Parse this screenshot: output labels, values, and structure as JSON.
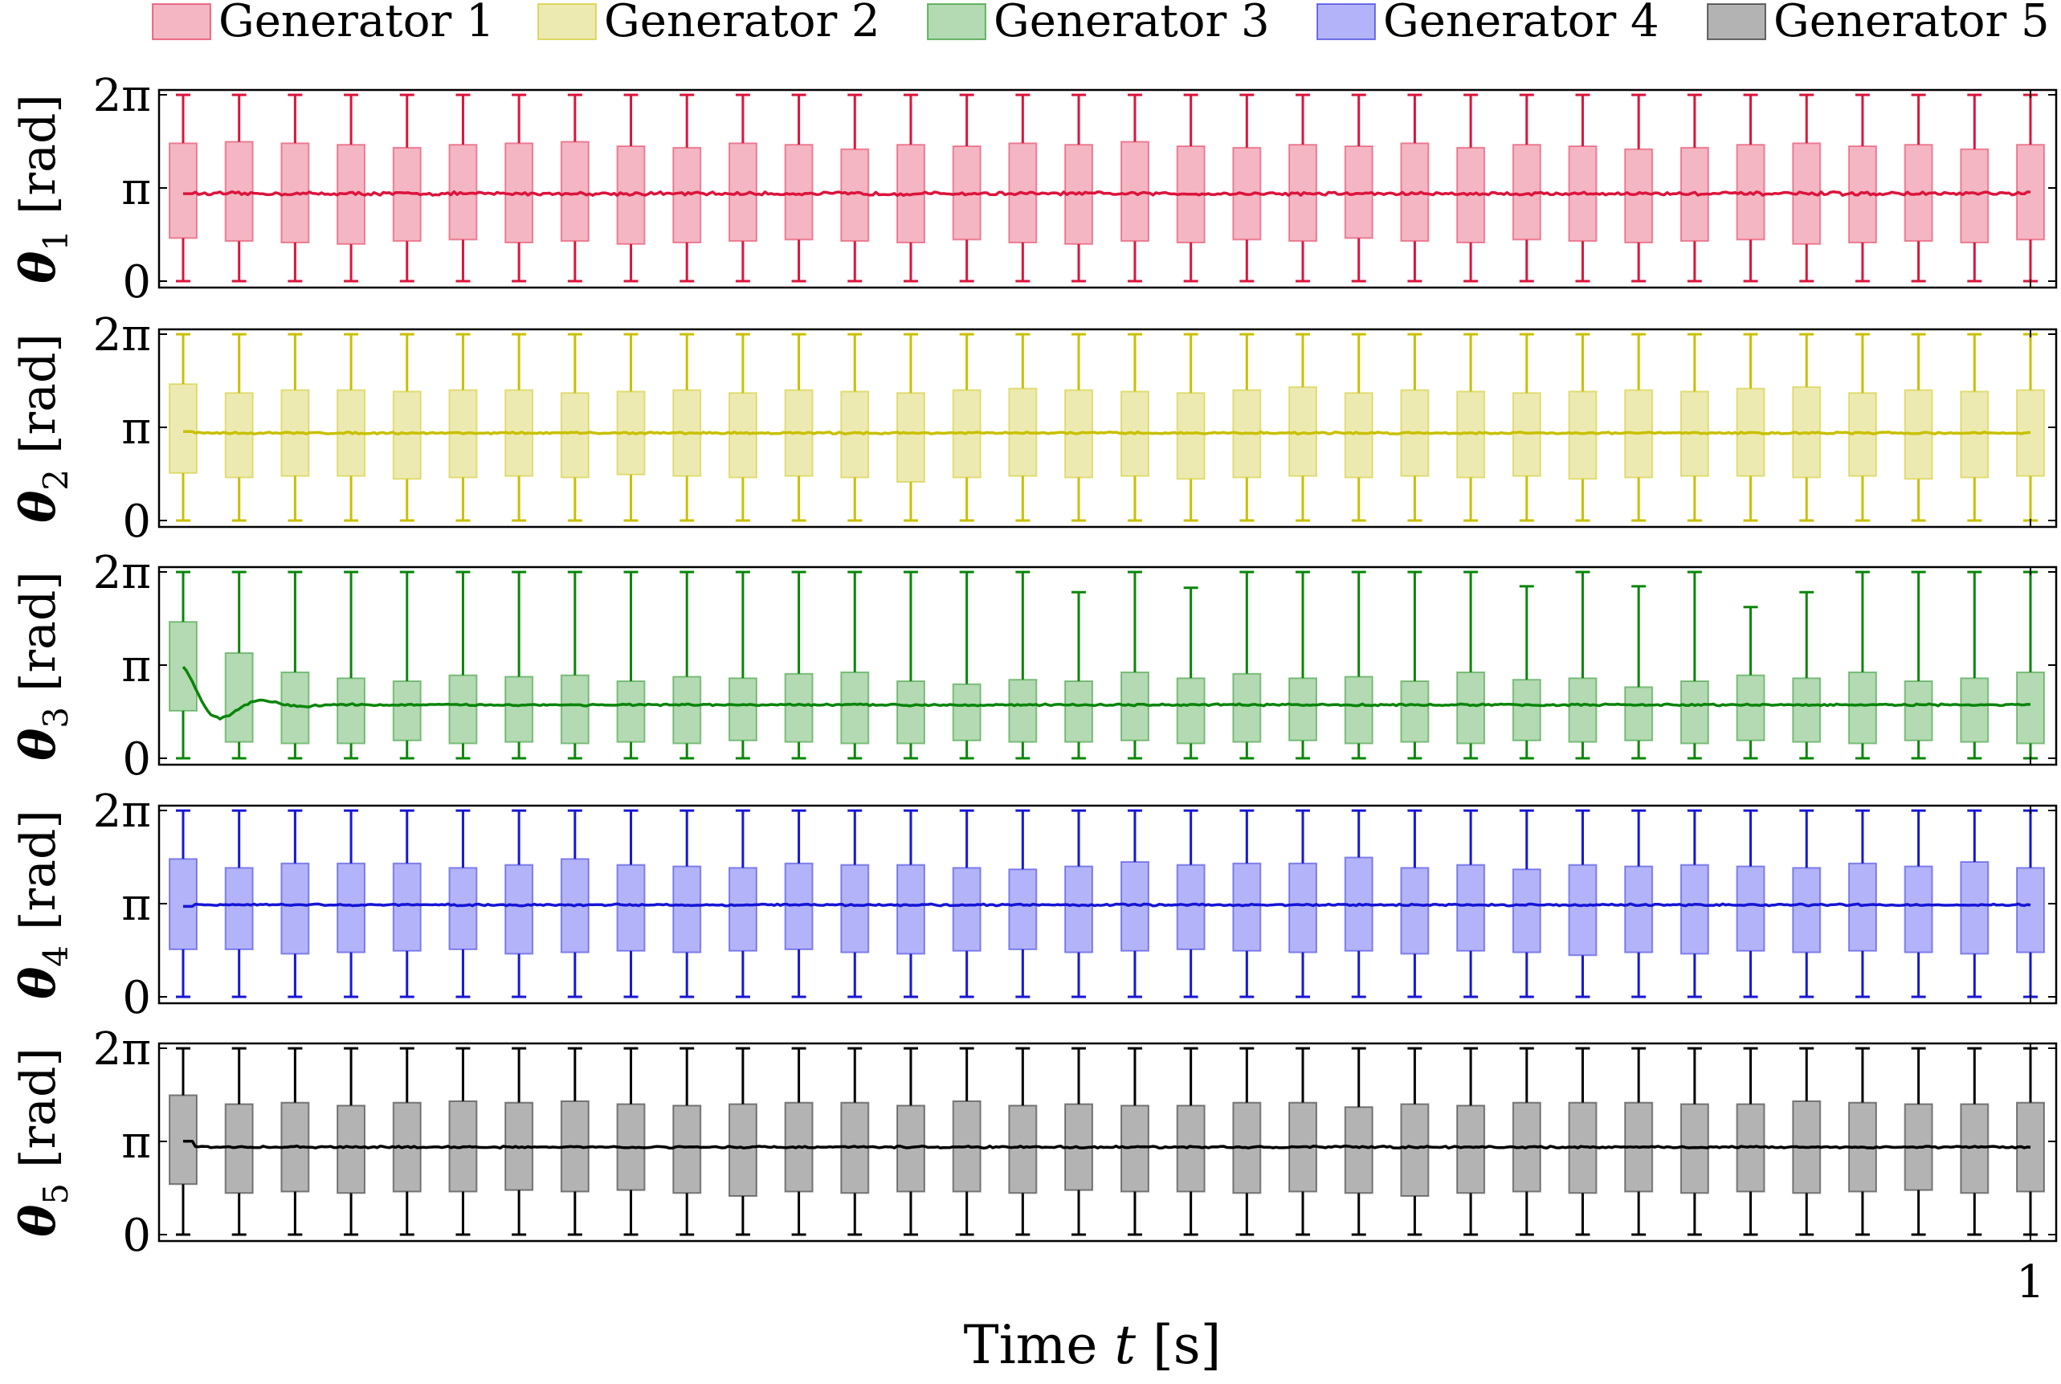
{
  "chart_data": {
    "type": "box_with_line",
    "time_unit": "s",
    "x_range": [
      0,
      1
    ],
    "x_ticks": [
      {
        "value": 1,
        "label": "1"
      }
    ],
    "xlabel": "Time t [s]",
    "xlabel_parts": {
      "pre": "Time ",
      "var": "t",
      "post": " [s]"
    },
    "ylim": [
      0,
      6.2832
    ],
    "y_ticks": [
      {
        "value": 0,
        "label": "0"
      },
      {
        "value": 3.1416,
        "label": "π"
      },
      {
        "value": 6.2832,
        "label": "2π"
      }
    ],
    "legend_position": "top",
    "grid": false,
    "box_times": [
      0,
      0.0303,
      0.0606,
      0.0909,
      0.1212,
      0.1515,
      0.1818,
      0.2121,
      0.2424,
      0.2727,
      0.303,
      0.3333,
      0.3636,
      0.3939,
      0.4242,
      0.4545,
      0.4848,
      0.5152,
      0.5455,
      0.5758,
      0.6061,
      0.6364,
      0.6667,
      0.697,
      0.7273,
      0.7576,
      0.7879,
      0.8182,
      0.8485,
      0.8788,
      0.9091,
      0.9394,
      0.9697,
      1.0
    ],
    "series": [
      {
        "name": "Generator 1",
        "ylabel": "θ1 [rad]",
        "ylabel_parts": {
          "sym": "θ",
          "sub": "1",
          "unit": " [rad]"
        },
        "color": "#dc143c",
        "fill": "#f4b6c2",
        "line_mean": 2.95,
        "line_start": 2.95,
        "line_noise": 0.09,
        "whisker_low": [
          0,
          0,
          0,
          0,
          0,
          0,
          0,
          0,
          0,
          0,
          0,
          0,
          0,
          0,
          0,
          0,
          0,
          0,
          0,
          0,
          0,
          0,
          0,
          0,
          0,
          0,
          0,
          0,
          0,
          0,
          0,
          0,
          0,
          0
        ],
        "whisker_high": [
          6.28,
          6.28,
          6.28,
          6.28,
          6.28,
          6.28,
          6.28,
          6.28,
          6.28,
          6.28,
          6.28,
          6.28,
          6.28,
          6.28,
          6.28,
          6.28,
          6.28,
          6.28,
          6.28,
          6.28,
          6.28,
          6.28,
          6.28,
          6.28,
          6.28,
          6.28,
          6.28,
          6.28,
          6.28,
          6.28,
          6.28,
          6.28,
          6.28,
          6.28
        ],
        "q1": [
          1.45,
          1.35,
          1.3,
          1.25,
          1.35,
          1.4,
          1.3,
          1.35,
          1.25,
          1.3,
          1.35,
          1.4,
          1.35,
          1.3,
          1.4,
          1.3,
          1.25,
          1.35,
          1.3,
          1.4,
          1.35,
          1.45,
          1.35,
          1.3,
          1.4,
          1.35,
          1.3,
          1.35,
          1.4,
          1.25,
          1.3,
          1.35,
          1.3,
          1.4
        ],
        "q3": [
          4.65,
          4.7,
          4.65,
          4.6,
          4.5,
          4.6,
          4.65,
          4.7,
          4.55,
          4.5,
          4.65,
          4.6,
          4.45,
          4.6,
          4.55,
          4.65,
          4.6,
          4.7,
          4.55,
          4.5,
          4.6,
          4.55,
          4.65,
          4.5,
          4.6,
          4.55,
          4.45,
          4.5,
          4.6,
          4.65,
          4.55,
          4.6,
          4.45,
          4.6
        ]
      },
      {
        "name": "Generator 2",
        "ylabel": "θ2 [rad]",
        "ylabel_parts": {
          "sym": "θ",
          "sub": "2",
          "unit": " [rad]"
        },
        "color": "#c8c000",
        "fill": "#edeab1",
        "line_mean": 2.95,
        "line_start": 3.0,
        "line_noise": 0.05,
        "whisker_low": [
          0,
          0,
          0,
          0,
          0,
          0,
          0,
          0,
          0,
          0,
          0,
          0,
          0,
          0,
          0,
          0,
          0,
          0,
          0,
          0,
          0,
          0,
          0,
          0,
          0,
          0,
          0,
          0,
          0,
          0,
          0,
          0,
          0,
          0
        ],
        "whisker_high": [
          6.28,
          6.28,
          6.28,
          6.28,
          6.28,
          6.28,
          6.28,
          6.28,
          6.28,
          6.28,
          6.28,
          6.28,
          6.28,
          6.28,
          6.28,
          6.28,
          6.28,
          6.28,
          6.28,
          6.28,
          6.28,
          6.28,
          6.28,
          6.28,
          6.28,
          6.28,
          6.28,
          6.28,
          6.28,
          6.28,
          6.28,
          6.28,
          6.28,
          6.28
        ],
        "q1": [
          1.6,
          1.45,
          1.5,
          1.5,
          1.4,
          1.45,
          1.5,
          1.45,
          1.55,
          1.5,
          1.45,
          1.5,
          1.45,
          1.3,
          1.45,
          1.5,
          1.45,
          1.5,
          1.4,
          1.45,
          1.5,
          1.45,
          1.5,
          1.45,
          1.5,
          1.4,
          1.45,
          1.5,
          1.5,
          1.45,
          1.5,
          1.4,
          1.45,
          1.5
        ],
        "q3": [
          4.6,
          4.3,
          4.4,
          4.4,
          4.35,
          4.4,
          4.4,
          4.3,
          4.35,
          4.4,
          4.3,
          4.4,
          4.35,
          4.3,
          4.4,
          4.45,
          4.4,
          4.35,
          4.3,
          4.4,
          4.5,
          4.3,
          4.4,
          4.35,
          4.3,
          4.35,
          4.4,
          4.35,
          4.45,
          4.5,
          4.3,
          4.4,
          4.35,
          4.4
        ]
      },
      {
        "name": "Generator 3",
        "ylabel": "θ3 [rad]",
        "ylabel_parts": {
          "sym": "θ",
          "sub": "3",
          "unit": " [rad]"
        },
        "color": "#0a850a",
        "fill": "#b3dab3",
        "line_mean": 1.8,
        "line_start": 3.1,
        "line_noise": 0.05,
        "whisker_low": [
          0,
          0,
          0,
          0,
          0,
          0,
          0,
          0,
          0,
          0,
          0,
          0,
          0,
          0,
          0,
          0,
          0,
          0,
          0,
          0,
          0,
          0,
          0,
          0,
          0,
          0,
          0,
          0,
          0,
          0,
          0,
          0,
          0,
          0
        ],
        "whisker_high": [
          6.28,
          6.28,
          6.28,
          6.28,
          6.28,
          6.28,
          6.28,
          6.28,
          6.28,
          6.28,
          6.28,
          6.28,
          6.28,
          6.28,
          6.28,
          6.28,
          5.6,
          6.28,
          5.75,
          6.28,
          6.28,
          6.28,
          6.28,
          6.28,
          5.8,
          6.28,
          5.8,
          6.28,
          5.1,
          5.6,
          6.28,
          6.28,
          6.28,
          6.28
        ],
        "q1": [
          1.6,
          0.55,
          0.5,
          0.5,
          0.6,
          0.5,
          0.55,
          0.5,
          0.55,
          0.5,
          0.6,
          0.55,
          0.5,
          0.5,
          0.6,
          0.55,
          0.55,
          0.6,
          0.5,
          0.55,
          0.6,
          0.5,
          0.55,
          0.5,
          0.6,
          0.55,
          0.6,
          0.5,
          0.6,
          0.55,
          0.5,
          0.6,
          0.55,
          0.5
        ],
        "q3": [
          4.6,
          3.55,
          2.9,
          2.7,
          2.6,
          2.8,
          2.75,
          2.8,
          2.6,
          2.75,
          2.7,
          2.85,
          2.9,
          2.6,
          2.5,
          2.65,
          2.6,
          2.9,
          2.7,
          2.85,
          2.7,
          2.75,
          2.6,
          2.9,
          2.65,
          2.7,
          2.4,
          2.6,
          2.8,
          2.7,
          2.9,
          2.6,
          2.7,
          2.9
        ]
      },
      {
        "name": "Generator 4",
        "ylabel": "θ4 [rad]",
        "ylabel_parts": {
          "sym": "θ",
          "sub": "4",
          "unit": " [rad]"
        },
        "color": "#1616d6",
        "fill": "#b3b3f9",
        "line_mean": 3.1,
        "line_start": 3.05,
        "line_noise": 0.05,
        "whisker_low": [
          0,
          0,
          0,
          0,
          0,
          0,
          0,
          0,
          0,
          0,
          0,
          0,
          0,
          0,
          0,
          0,
          0,
          0,
          0,
          0,
          0,
          0,
          0,
          0,
          0,
          0,
          0,
          0,
          0,
          0,
          0,
          0,
          0,
          0
        ],
        "whisker_high": [
          6.28,
          6.28,
          6.28,
          6.28,
          6.28,
          6.28,
          6.28,
          6.28,
          6.28,
          6.28,
          6.28,
          6.28,
          6.28,
          6.28,
          6.28,
          6.28,
          6.28,
          6.28,
          6.28,
          6.28,
          6.28,
          6.28,
          6.28,
          6.28,
          6.28,
          6.28,
          6.28,
          6.28,
          6.28,
          6.28,
          6.28,
          6.28,
          6.28,
          6.28
        ],
        "q1": [
          1.6,
          1.6,
          1.45,
          1.5,
          1.55,
          1.6,
          1.45,
          1.5,
          1.55,
          1.5,
          1.55,
          1.6,
          1.5,
          1.45,
          1.55,
          1.6,
          1.5,
          1.55,
          1.6,
          1.55,
          1.5,
          1.55,
          1.45,
          1.55,
          1.5,
          1.4,
          1.5,
          1.45,
          1.55,
          1.5,
          1.55,
          1.5,
          1.45,
          1.5
        ],
        "q3": [
          4.65,
          4.35,
          4.5,
          4.5,
          4.5,
          4.35,
          4.45,
          4.65,
          4.45,
          4.4,
          4.35,
          4.5,
          4.45,
          4.45,
          4.35,
          4.3,
          4.4,
          4.55,
          4.45,
          4.5,
          4.5,
          4.7,
          4.35,
          4.45,
          4.3,
          4.45,
          4.4,
          4.45,
          4.4,
          4.35,
          4.5,
          4.4,
          4.55,
          4.35
        ]
      },
      {
        "name": "Generator 5",
        "ylabel": "θ5 [rad]",
        "ylabel_parts": {
          "sym": "θ",
          "sub": "5",
          "unit": " [rad]"
        },
        "color": "#000000",
        "fill": "#b3b3b3",
        "line_mean": 2.95,
        "line_start": 3.15,
        "line_noise": 0.05,
        "whisker_low": [
          0,
          0,
          0,
          0,
          0,
          0,
          0,
          0,
          0,
          0,
          0,
          0,
          0,
          0,
          0,
          0,
          0,
          0,
          0,
          0,
          0,
          0,
          0,
          0,
          0,
          0,
          0,
          0,
          0,
          0,
          0,
          0,
          0,
          0
        ],
        "whisker_high": [
          6.28,
          6.28,
          6.28,
          6.28,
          6.28,
          6.28,
          6.28,
          6.28,
          6.28,
          6.28,
          6.28,
          6.28,
          6.28,
          6.28,
          6.28,
          6.28,
          6.28,
          6.28,
          6.28,
          6.28,
          6.28,
          6.28,
          6.28,
          6.28,
          6.28,
          6.28,
          6.28,
          6.28,
          6.28,
          6.28,
          6.28,
          6.28,
          6.28,
          6.28
        ],
        "q1": [
          1.7,
          1.4,
          1.45,
          1.4,
          1.45,
          1.45,
          1.5,
          1.45,
          1.5,
          1.4,
          1.3,
          1.45,
          1.4,
          1.45,
          1.45,
          1.4,
          1.5,
          1.45,
          1.45,
          1.4,
          1.45,
          1.4,
          1.3,
          1.4,
          1.45,
          1.4,
          1.45,
          1.4,
          1.45,
          1.4,
          1.45,
          1.5,
          1.4,
          1.45
        ],
        "q3": [
          4.7,
          4.4,
          4.45,
          4.35,
          4.45,
          4.5,
          4.45,
          4.5,
          4.4,
          4.35,
          4.4,
          4.45,
          4.45,
          4.35,
          4.5,
          4.35,
          4.4,
          4.35,
          4.35,
          4.45,
          4.45,
          4.3,
          4.4,
          4.35,
          4.45,
          4.45,
          4.45,
          4.4,
          4.4,
          4.5,
          4.45,
          4.4,
          4.4,
          4.45
        ]
      }
    ]
  }
}
